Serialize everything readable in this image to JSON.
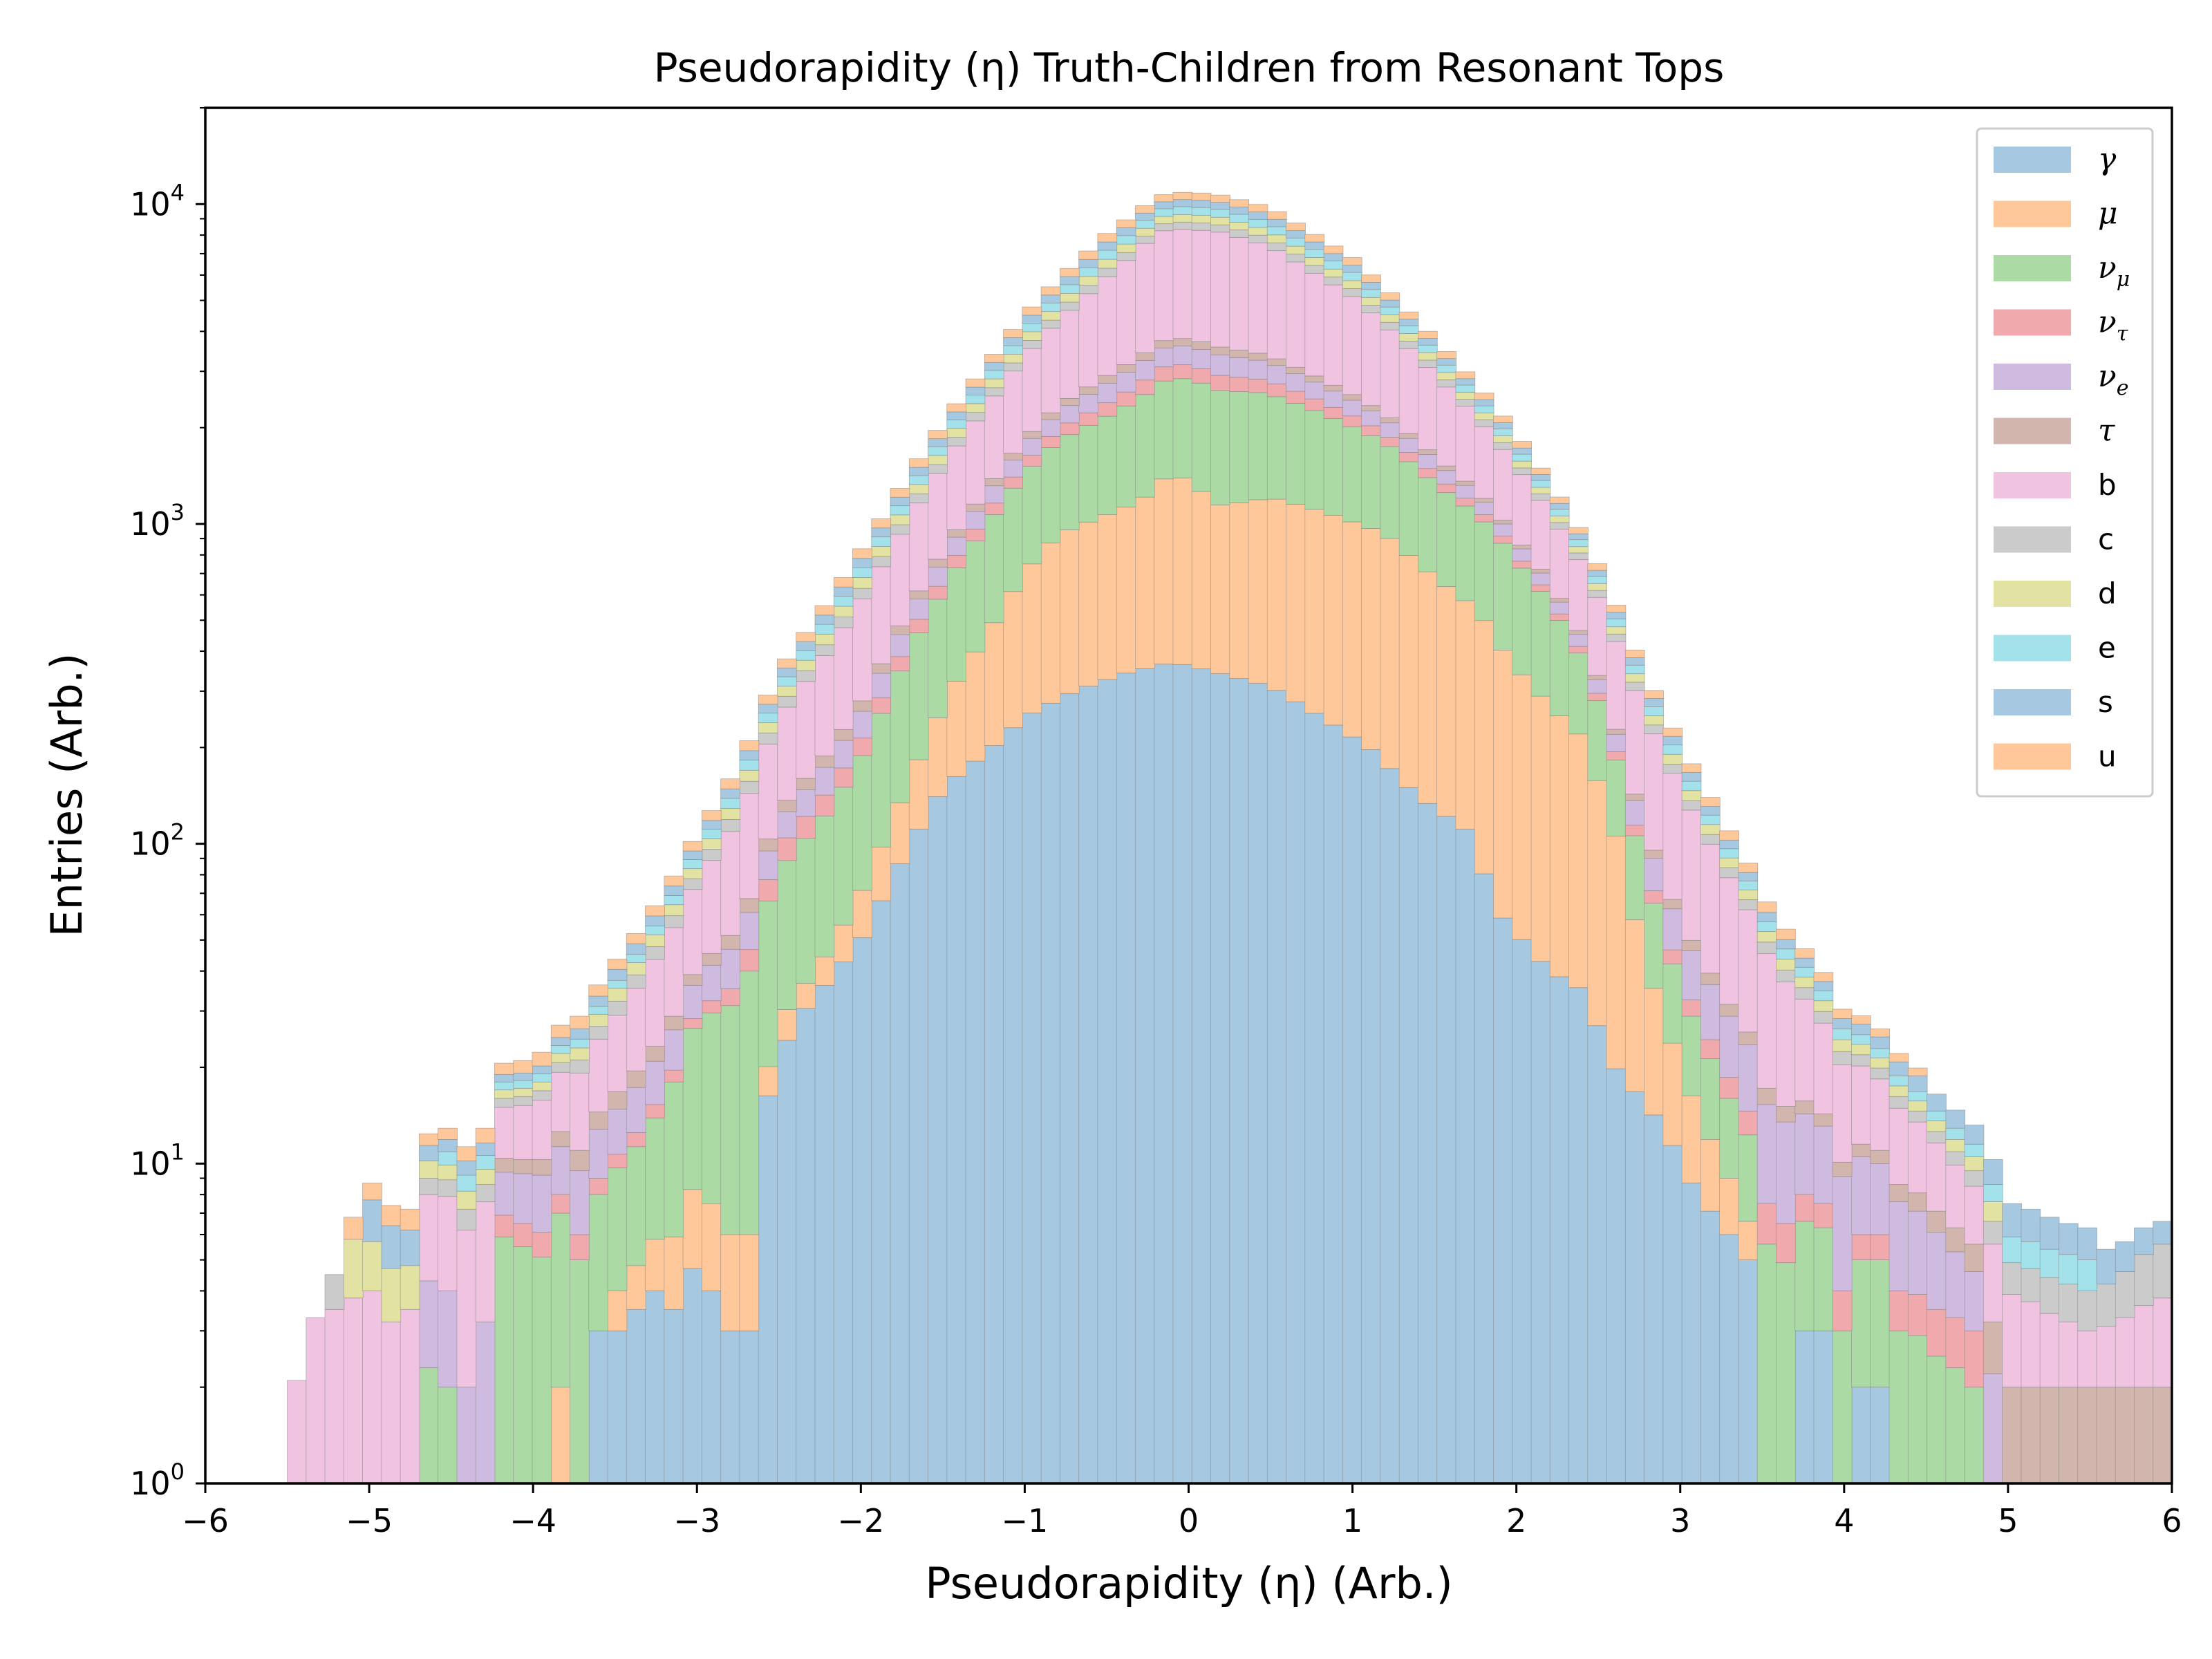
{
  "chart_data": {
    "type": "area",
    "title": "Pseudorapidity (η) Truth-Children from Resonant Tops",
    "xlabel": "Pseudorapidity (η) (Arb.)",
    "ylabel": "Entries (Arb.)",
    "xlim": [
      -6,
      6
    ],
    "ylim": [
      1,
      20000
    ],
    "yscale": "log",
    "stacked": true,
    "bins": 100,
    "bin_range": [
      -5.5,
      6.0
    ],
    "grid": false,
    "legend_position": "top-right",
    "x_ticks": [
      "−6",
      "−5",
      "−4",
      "−3",
      "−2",
      "−1",
      "0",
      "1",
      "2",
      "3",
      "4",
      "5",
      "6"
    ],
    "y_ticks": [
      {
        "base": "10",
        "exp": "0",
        "value": 1
      },
      {
        "base": "10",
        "exp": "1",
        "value": 10
      },
      {
        "base": "10",
        "exp": "2",
        "value": 100
      },
      {
        "base": "10",
        "exp": "3",
        "value": 1000
      },
      {
        "base": "10",
        "exp": "4",
        "value": 10000
      }
    ],
    "series": [
      {
        "name": "γ",
        "color": "#a6c8e0",
        "anchors": [
          [
            -3.7,
            0
          ],
          [
            -3.6,
            3
          ],
          [
            -3.4,
            3
          ],
          [
            -3.3,
            5
          ],
          [
            -3.2,
            3
          ],
          [
            -3.0,
            5
          ],
          [
            -2.8,
            3
          ],
          [
            -2.6,
            3
          ],
          [
            -2.7,
            9
          ],
          [
            -2.5,
            22
          ],
          [
            -2.35,
            30
          ],
          [
            -2.0,
            50
          ],
          [
            -1.7,
            100
          ],
          [
            -1.5,
            150
          ],
          [
            -1.2,
            200
          ],
          [
            -1.0,
            250
          ],
          [
            -0.7,
            300
          ],
          [
            -0.4,
            340
          ],
          [
            -0.1,
            370
          ],
          [
            0.1,
            350
          ],
          [
            0.5,
            310
          ],
          [
            0.8,
            250
          ],
          [
            1.1,
            200
          ],
          [
            1.4,
            140
          ],
          [
            1.7,
            110
          ],
          [
            1.9,
            60
          ],
          [
            2.2,
            40
          ],
          [
            2.4,
            35
          ],
          [
            2.6,
            20
          ],
          [
            2.9,
            13
          ],
          [
            3.1,
            8
          ],
          [
            3.3,
            6
          ],
          [
            3.4,
            5
          ],
          [
            3.5,
            0
          ],
          [
            3.8,
            3
          ],
          [
            4.0,
            0
          ],
          [
            4.2,
            2
          ],
          [
            4.25,
            0
          ]
        ]
      },
      {
        "name": "μ",
        "color": "#ffc89a",
        "anchors": [
          [
            -3.9,
            2
          ],
          [
            -3.6,
            0
          ],
          [
            -3.5,
            1
          ],
          [
            -3.2,
            2
          ],
          [
            -3.0,
            4
          ],
          [
            -2.8,
            3
          ],
          [
            -2.6,
            3
          ],
          [
            -2.5,
            6
          ],
          [
            -2.3,
            6
          ],
          [
            -2.0,
            20
          ],
          [
            -1.7,
            60
          ],
          [
            -1.4,
            170
          ],
          [
            -1.0,
            460
          ],
          [
            -0.8,
            640
          ],
          [
            -0.3,
            820
          ],
          [
            -0.1,
            1100
          ],
          [
            0.2,
            800
          ],
          [
            0.5,
            900
          ],
          [
            0.8,
            850
          ],
          [
            1.2,
            750
          ],
          [
            1.5,
            550
          ],
          [
            1.8,
            420
          ],
          [
            2.0,
            300
          ],
          [
            2.2,
            230
          ],
          [
            2.4,
            180
          ],
          [
            2.6,
            90
          ],
          [
            2.8,
            25
          ],
          [
            3.0,
            10
          ],
          [
            3.3,
            3
          ],
          [
            3.5,
            1
          ],
          [
            3.6,
            1
          ],
          [
            3.7,
            0
          ]
        ]
      },
      {
        "name": "ν_μ",
        "color": "#abdaa5",
        "anchors": [
          [
            -5.3,
            0
          ],
          [
            -5.2,
            1
          ],
          [
            -4.8,
            0
          ],
          [
            -4.7,
            3
          ],
          [
            -4.6,
            2
          ],
          [
            -4.3,
            0
          ],
          [
            -4.2,
            6
          ],
          [
            -3.9,
            5
          ],
          [
            -3.6,
            5
          ],
          [
            -3.3,
            7
          ],
          [
            -3.0,
            20
          ],
          [
            -2.8,
            25
          ],
          [
            -2.5,
            55
          ],
          [
            -2.2,
            80
          ],
          [
            -2.0,
            115
          ],
          [
            -1.7,
            250
          ],
          [
            -1.4,
            420
          ],
          [
            -1.1,
            660
          ],
          [
            -0.8,
            900
          ],
          [
            -0.5,
            1100
          ],
          [
            -0.2,
            1400
          ],
          [
            0.1,
            1500
          ],
          [
            0.4,
            1400
          ],
          [
            0.7,
            1200
          ],
          [
            1.0,
            1000
          ],
          [
            1.3,
            800
          ],
          [
            1.6,
            600
          ],
          [
            1.9,
            480
          ],
          [
            2.2,
            300
          ],
          [
            2.5,
            120
          ],
          [
            2.8,
            35
          ],
          [
            3.0,
            15
          ],
          [
            3.3,
            7
          ],
          [
            3.6,
            4
          ],
          [
            4.0,
            3
          ],
          [
            4.4,
            3
          ],
          [
            4.8,
            2
          ],
          [
            5.0,
            0
          ]
        ]
      },
      {
        "name": "ν_τ",
        "color": "#f0a9ac",
        "anchors": [
          [
            -5.0,
            1
          ],
          [
            -4.8,
            0
          ],
          [
            -3.9,
            1
          ],
          [
            -3.5,
            1
          ],
          [
            -3.0,
            2
          ],
          [
            -2.8,
            4
          ],
          [
            -2.5,
            15
          ],
          [
            -2.0,
            25
          ],
          [
            -1.5,
            60
          ],
          [
            -1.0,
            120
          ],
          [
            -0.5,
            220
          ],
          [
            -0.2,
            300
          ],
          [
            0.2,
            300
          ],
          [
            0.5,
            250
          ],
          [
            1.0,
            160
          ],
          [
            1.5,
            90
          ],
          [
            2.0,
            40
          ],
          [
            2.5,
            15
          ],
          [
            3.0,
            4
          ],
          [
            3.5,
            2
          ],
          [
            4.0,
            1
          ],
          [
            4.3,
            1
          ],
          [
            5.5,
            1
          ],
          [
            6.0,
            1
          ]
        ]
      },
      {
        "name": "ν_e",
        "color": "#d0bbe0",
        "anchors": [
          [
            -4.7,
            2
          ],
          [
            -4.4,
            2
          ],
          [
            -4.0,
            3
          ],
          [
            -3.5,
            4
          ],
          [
            -3.0,
            8
          ],
          [
            -2.5,
            20
          ],
          [
            -2.0,
            45
          ],
          [
            -1.5,
            100
          ],
          [
            -1.0,
            200
          ],
          [
            -0.5,
            360
          ],
          [
            -0.2,
            450
          ],
          [
            0.2,
            460
          ],
          [
            0.5,
            400
          ],
          [
            1.0,
            260
          ],
          [
            1.5,
            150
          ],
          [
            2.0,
            75
          ],
          [
            2.5,
            30
          ],
          [
            3.0,
            15
          ],
          [
            3.5,
            8
          ],
          [
            4.0,
            5
          ],
          [
            4.5,
            3
          ],
          [
            5.0,
            1
          ]
        ]
      },
      {
        "name": "τ",
        "color": "#d2b5ad",
        "anchors": [
          [
            -5.4,
            1
          ],
          [
            -5.2,
            0
          ],
          [
            -4.5,
            0
          ],
          [
            -4.0,
            1
          ],
          [
            -3.5,
            2
          ],
          [
            -3.0,
            3
          ],
          [
            -2.5,
            10
          ],
          [
            -2.0,
            20
          ],
          [
            -1.5,
            45
          ],
          [
            -1.0,
            90
          ],
          [
            -0.5,
            160
          ],
          [
            -0.1,
            200
          ],
          [
            0.2,
            200
          ],
          [
            0.5,
            160
          ],
          [
            1.0,
            100
          ],
          [
            1.5,
            55
          ],
          [
            2.0,
            25
          ],
          [
            2.5,
            10
          ],
          [
            3.0,
            4
          ],
          [
            3.5,
            2
          ],
          [
            4.0,
            1
          ],
          [
            5.9,
            1
          ],
          [
            6.0,
            1
          ]
        ]
      },
      {
        "name": "b",
        "color": "#f0c3e1",
        "anchors": [
          [
            -5.5,
            2
          ],
          [
            -5.0,
            3
          ],
          [
            -4.5,
            4
          ],
          [
            -4.0,
            5
          ],
          [
            -3.5,
            12
          ],
          [
            -3.0,
            35
          ],
          [
            -2.5,
            120
          ],
          [
            -2.0,
            300
          ],
          [
            -1.5,
            700
          ],
          [
            -1.0,
            1500
          ],
          [
            -0.5,
            3000
          ],
          [
            -0.2,
            4500
          ],
          [
            0.2,
            4600
          ],
          [
            0.5,
            4000
          ],
          [
            1.0,
            2600
          ],
          [
            1.5,
            1300
          ],
          [
            2.0,
            600
          ],
          [
            2.5,
            250
          ],
          [
            3.0,
            90
          ],
          [
            3.5,
            30
          ],
          [
            4.0,
            10
          ],
          [
            4.5,
            5
          ],
          [
            5.0,
            2
          ],
          [
            5.5,
            1
          ],
          [
            6.0,
            2
          ]
        ]
      },
      {
        "name": "c",
        "color": "#cbcbcb",
        "anchors": [
          [
            -5.3,
            1
          ],
          [
            -5.0,
            0
          ],
          [
            -4.5,
            1
          ],
          [
            -4.0,
            1
          ],
          [
            -3.5,
            3
          ],
          [
            -3.0,
            6
          ],
          [
            -2.5,
            20
          ],
          [
            -2.0,
            45
          ],
          [
            -1.5,
            100
          ],
          [
            -1.0,
            200
          ],
          [
            -0.5,
            380
          ],
          [
            0.0,
            450
          ],
          [
            0.5,
            420
          ],
          [
            1.0,
            300
          ],
          [
            1.5,
            160
          ],
          [
            2.0,
            75
          ],
          [
            2.5,
            30
          ],
          [
            3.0,
            10
          ],
          [
            3.5,
            4
          ],
          [
            4.0,
            2
          ],
          [
            4.5,
            1
          ],
          [
            5.5,
            1
          ],
          [
            6.0,
            2
          ]
        ]
      },
      {
        "name": "d",
        "color": "#e2e2a2",
        "anchors": [
          [
            -5.1,
            2
          ],
          [
            -4.5,
            1
          ],
          [
            -4.0,
            1
          ],
          [
            -3.5,
            3
          ],
          [
            -3.0,
            6
          ],
          [
            -2.5,
            20
          ],
          [
            -2.0,
            50
          ],
          [
            -1.5,
            110
          ],
          [
            -1.0,
            230
          ],
          [
            -0.5,
            420
          ],
          [
            0.0,
            500
          ],
          [
            0.5,
            460
          ],
          [
            1.0,
            320
          ],
          [
            1.5,
            170
          ],
          [
            2.0,
            80
          ],
          [
            2.5,
            30
          ],
          [
            3.0,
            12
          ],
          [
            3.5,
            4
          ],
          [
            4.0,
            2
          ],
          [
            4.5,
            1
          ],
          [
            5.0,
            1
          ]
        ]
      },
      {
        "name": "e",
        "color": "#a4e2eb",
        "anchors": [
          [
            -4.6,
            1
          ],
          [
            -4.0,
            1
          ],
          [
            -3.5,
            2
          ],
          [
            -3.0,
            6
          ],
          [
            -2.5,
            20
          ],
          [
            -2.0,
            50
          ],
          [
            -1.5,
            110
          ],
          [
            -1.0,
            240
          ],
          [
            -0.5,
            450
          ],
          [
            0.0,
            550
          ],
          [
            0.5,
            500
          ],
          [
            1.0,
            350
          ],
          [
            1.5,
            180
          ],
          [
            2.0,
            85
          ],
          [
            2.5,
            35
          ],
          [
            3.0,
            12
          ],
          [
            3.5,
            4
          ],
          [
            4.0,
            2
          ],
          [
            4.5,
            1
          ],
          [
            5.5,
            1
          ]
        ]
      },
      {
        "name": "s",
        "color": "#a6c8e0",
        "anchors": [
          [
            -5.0,
            2
          ],
          [
            -4.5,
            1
          ],
          [
            -4.0,
            1
          ],
          [
            -3.5,
            3
          ],
          [
            -3.0,
            6
          ],
          [
            -2.5,
            20
          ],
          [
            -2.0,
            50
          ],
          [
            -1.5,
            110
          ],
          [
            -1.0,
            240
          ],
          [
            -0.5,
            440
          ],
          [
            0.0,
            520
          ],
          [
            0.5,
            480
          ],
          [
            1.0,
            330
          ],
          [
            1.5,
            170
          ],
          [
            2.0,
            80
          ],
          [
            2.5,
            30
          ],
          [
            3.0,
            12
          ],
          [
            3.5,
            4
          ],
          [
            4.0,
            2
          ],
          [
            4.5,
            2
          ],
          [
            6.0,
            1
          ]
        ]
      },
      {
        "name": "u",
        "color": "#ffc89a",
        "anchors": [
          [
            -5.1,
            1
          ],
          [
            -4.5,
            1
          ],
          [
            -4.0,
            2
          ],
          [
            -3.5,
            3
          ],
          [
            -3.0,
            7
          ],
          [
            -2.5,
            22
          ],
          [
            -2.0,
            55
          ],
          [
            -1.5,
            120
          ],
          [
            -1.0,
            260
          ],
          [
            -0.5,
            480
          ],
          [
            0.0,
            560
          ],
          [
            0.5,
            520
          ],
          [
            1.0,
            360
          ],
          [
            1.5,
            190
          ],
          [
            2.0,
            90
          ],
          [
            2.5,
            35
          ],
          [
            3.0,
            12
          ],
          [
            3.5,
            5
          ],
          [
            4.0,
            2
          ],
          [
            4.5,
            1
          ]
        ]
      }
    ]
  }
}
